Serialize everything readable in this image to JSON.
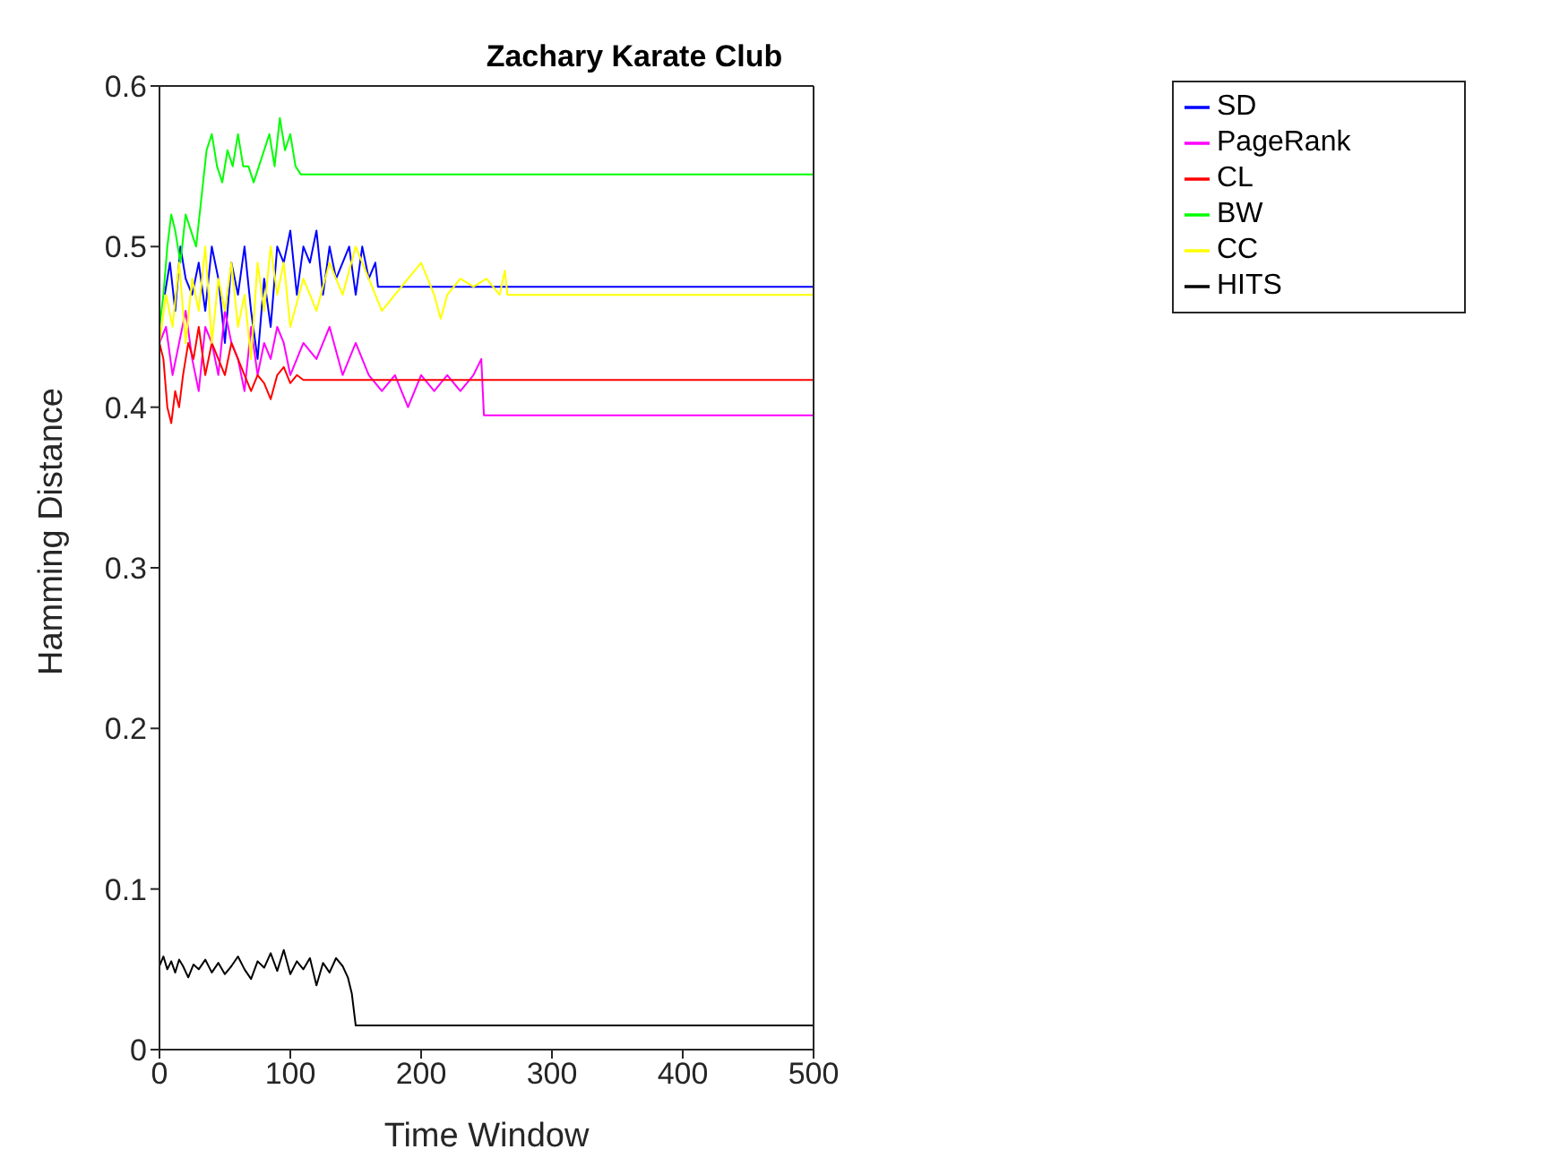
{
  "chart_data": {
    "type": "line",
    "title": "Zachary Karate Club",
    "xlabel": "Time Window",
    "ylabel": "Hamming Distance",
    "xlim": [
      0,
      500
    ],
    "xticks": [
      0,
      100,
      200,
      300,
      400,
      500
    ],
    "ylim": [
      0,
      0.6
    ],
    "yticks": [
      0,
      0.1,
      0.2,
      0.3,
      0.4,
      0.5,
      0.6
    ],
    "legend": "top right",
    "marker": "none",
    "line_style": "solid",
    "series": [
      {
        "name": "SD",
        "color": "#0000ff",
        "x": [
          4,
          8,
          12,
          16,
          20,
          25,
          30,
          35,
          40,
          45,
          50,
          55,
          60,
          65,
          70,
          75,
          80,
          85,
          90,
          95,
          100,
          105,
          110,
          115,
          120,
          125,
          130,
          135,
          140,
          145,
          150,
          155,
          160,
          165,
          167,
          500
        ],
        "values": [
          0.47,
          0.49,
          0.46,
          0.5,
          0.48,
          0.47,
          0.49,
          0.46,
          0.5,
          0.48,
          0.44,
          0.49,
          0.47,
          0.5,
          0.46,
          0.43,
          0.48,
          0.45,
          0.5,
          0.49,
          0.51,
          0.47,
          0.5,
          0.49,
          0.51,
          0.47,
          0.5,
          0.48,
          0.49,
          0.5,
          0.47,
          0.5,
          0.48,
          0.49,
          0.475,
          0.475
        ]
      },
      {
        "name": "PageRank",
        "color": "#ff00ff",
        "x": [
          0,
          5,
          10,
          15,
          20,
          25,
          30,
          35,
          40,
          45,
          50,
          55,
          60,
          65,
          70,
          75,
          80,
          85,
          90,
          95,
          100,
          110,
          120,
          130,
          140,
          150,
          160,
          170,
          180,
          190,
          200,
          210,
          220,
          230,
          240,
          246,
          248,
          500
        ],
        "values": [
          0.44,
          0.45,
          0.42,
          0.44,
          0.46,
          0.43,
          0.41,
          0.45,
          0.44,
          0.42,
          0.46,
          0.44,
          0.43,
          0.41,
          0.45,
          0.42,
          0.44,
          0.43,
          0.45,
          0.44,
          0.42,
          0.44,
          0.43,
          0.45,
          0.42,
          0.44,
          0.42,
          0.41,
          0.42,
          0.4,
          0.42,
          0.41,
          0.42,
          0.41,
          0.42,
          0.43,
          0.395,
          0.395
        ]
      },
      {
        "name": "CL",
        "color": "#ff0000",
        "x": [
          0,
          3,
          6,
          9,
          12,
          15,
          18,
          22,
          26,
          30,
          35,
          40,
          45,
          50,
          55,
          60,
          65,
          70,
          75,
          80,
          85,
          90,
          95,
          100,
          105,
          110,
          500
        ],
        "values": [
          0.44,
          0.43,
          0.4,
          0.39,
          0.41,
          0.4,
          0.42,
          0.44,
          0.43,
          0.45,
          0.42,
          0.44,
          0.43,
          0.42,
          0.44,
          0.43,
          0.42,
          0.41,
          0.42,
          0.415,
          0.405,
          0.42,
          0.425,
          0.415,
          0.42,
          0.417,
          0.417
        ]
      },
      {
        "name": "BW",
        "color": "#00ff00",
        "x": [
          0,
          3,
          6,
          9,
          12,
          16,
          20,
          24,
          28,
          32,
          36,
          40,
          44,
          48,
          52,
          56,
          60,
          64,
          68,
          72,
          76,
          80,
          84,
          88,
          92,
          96,
          100,
          104,
          108,
          500
        ],
        "values": [
          0.45,
          0.47,
          0.5,
          0.52,
          0.51,
          0.49,
          0.52,
          0.51,
          0.5,
          0.53,
          0.56,
          0.57,
          0.55,
          0.54,
          0.56,
          0.55,
          0.57,
          0.55,
          0.55,
          0.54,
          0.55,
          0.56,
          0.57,
          0.55,
          0.58,
          0.56,
          0.57,
          0.55,
          0.545,
          0.545
        ]
      },
      {
        "name": "CC",
        "color": "#ffff00",
        "x": [
          0,
          5,
          10,
          15,
          20,
          25,
          30,
          35,
          40,
          45,
          50,
          55,
          60,
          65,
          70,
          75,
          80,
          85,
          90,
          95,
          100,
          110,
          120,
          130,
          140,
          150,
          160,
          170,
          180,
          190,
          200,
          210,
          215,
          220,
          230,
          240,
          250,
          260,
          264,
          266,
          500
        ],
        "values": [
          0.44,
          0.47,
          0.45,
          0.49,
          0.44,
          0.48,
          0.46,
          0.5,
          0.44,
          0.48,
          0.46,
          0.49,
          0.45,
          0.47,
          0.43,
          0.49,
          0.46,
          0.5,
          0.47,
          0.49,
          0.45,
          0.48,
          0.46,
          0.49,
          0.47,
          0.5,
          0.48,
          0.46,
          0.47,
          0.48,
          0.49,
          0.47,
          0.455,
          0.47,
          0.48,
          0.475,
          0.48,
          0.47,
          0.485,
          0.47,
          0.47
        ]
      },
      {
        "name": "HITS",
        "color": "#000000",
        "x": [
          0,
          3,
          6,
          9,
          12,
          15,
          18,
          22,
          26,
          30,
          35,
          40,
          45,
          50,
          55,
          60,
          65,
          70,
          75,
          80,
          85,
          90,
          95,
          100,
          105,
          110,
          115,
          120,
          125,
          130,
          135,
          140,
          144,
          147,
          150,
          500
        ],
        "values": [
          0.052,
          0.058,
          0.05,
          0.055,
          0.048,
          0.056,
          0.052,
          0.045,
          0.053,
          0.05,
          0.056,
          0.048,
          0.054,
          0.047,
          0.052,
          0.058,
          0.05,
          0.044,
          0.055,
          0.051,
          0.06,
          0.049,
          0.062,
          0.047,
          0.055,
          0.05,
          0.057,
          0.04,
          0.054,
          0.048,
          0.057,
          0.052,
          0.045,
          0.035,
          0.015,
          0.015
        ]
      }
    ]
  }
}
